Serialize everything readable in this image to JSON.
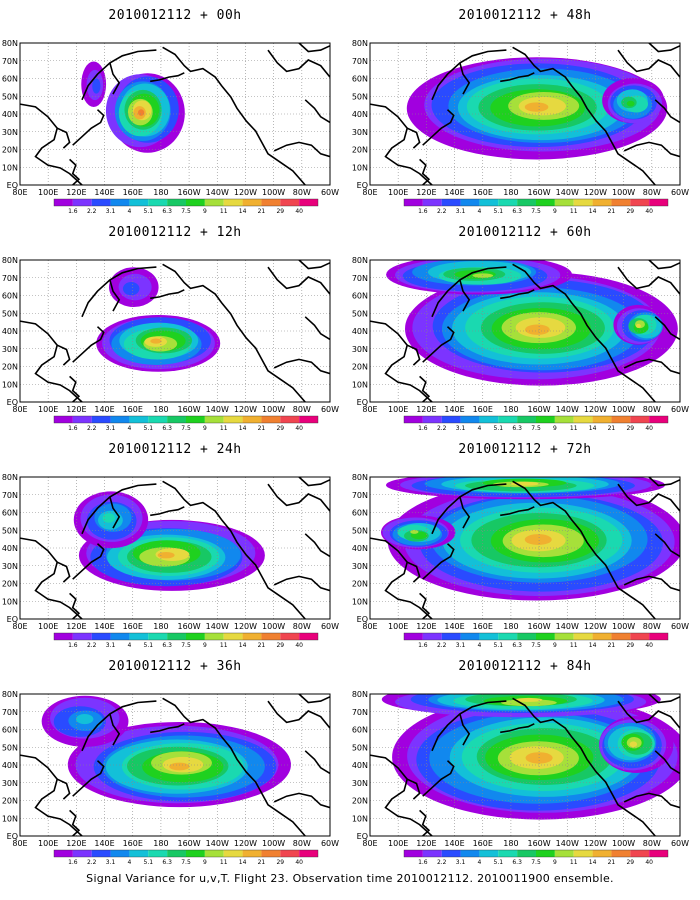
{
  "caption": "Signal Variance for u,v,T. Flight 23. Observation time 2010012112. 2010011900 ensemble.",
  "lat_labels": [
    "80N",
    "70N",
    "60N",
    "50N",
    "40N",
    "30N",
    "20N",
    "10N",
    "EQ"
  ],
  "lon_labels": [
    "80E",
    "100E",
    "120E",
    "140E",
    "160E",
    "180",
    "160W",
    "140W",
    "120W",
    "100W",
    "80W",
    "60W"
  ],
  "colorbar": {
    "labels": [
      "1.6",
      "2.2",
      "3.1",
      "4",
      "5.1",
      "6.3",
      "7.5",
      "9",
      "11",
      "14",
      "21",
      "29",
      "40"
    ],
    "colors": [
      "#a100df",
      "#7c34ff",
      "#2a4bff",
      "#1188ee",
      "#13c0d8",
      "#1ad9b0",
      "#17c864",
      "#1fd11f",
      "#a6e03a",
      "#e6d940",
      "#f0b030",
      "#f08030",
      "#f04550",
      "#e8007b"
    ]
  },
  "panels": [
    {
      "title": "2010012112 + 00h",
      "lead_hours": 0
    },
    {
      "title": "2010012112 + 48h",
      "lead_hours": 48
    },
    {
      "title": "2010012112 + 12h",
      "lead_hours": 12
    },
    {
      "title": "2010012112 + 60h",
      "lead_hours": 60
    },
    {
      "title": "2010012112 + 24h",
      "lead_hours": 24
    },
    {
      "title": "2010012112 + 72h",
      "lead_hours": 72
    },
    {
      "title": "2010012112 + 36h",
      "lead_hours": 36
    },
    {
      "title": "2010012112 + 84h",
      "lead_hours": 84
    }
  ]
}
